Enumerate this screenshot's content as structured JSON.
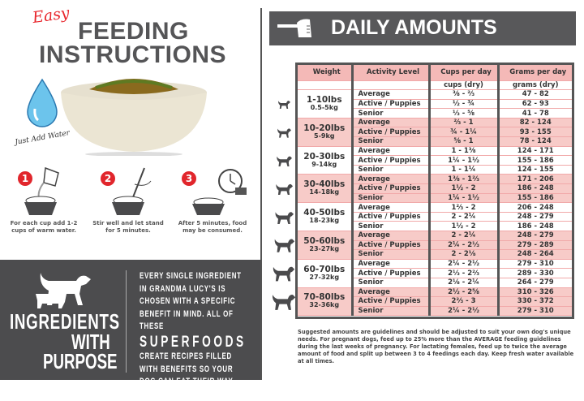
{
  "left": {
    "easy": "Easy",
    "title_line1": "FEEDING",
    "title_line2": "INSTRUCTIONS",
    "tagline": "Just Add Water",
    "steps": [
      {
        "number": "1",
        "caption": "For each cup add 1-2 cups of warm water."
      },
      {
        "number": "2",
        "caption": "Stir well and let stand for 5 minutes."
      },
      {
        "number": "3",
        "caption": "After 5 minutes, food may be consumed.",
        "timer_label": "5min"
      }
    ],
    "ingredients": {
      "line1": "INGREDIENTS",
      "line2": "WITH",
      "line3": "PURPOSE",
      "blurb_a": "EVERY SINGLE INGREDIENT IN GRANDMA LUCY'S IS CHOSEN WITH A SPECIFIC BENEFIT IN MIND. ALL OF THESE",
      "blurb_big": "SUPERFOODS",
      "blurb_b": "CREATE RECIPES FILLED WITH BENEFITS SO YOUR DOG CAN EAT THEIR WAY TO HEALTH."
    }
  },
  "right": {
    "title": "DAILY AMOUNTS",
    "columns": [
      "Weight",
      "Activity Level",
      "Cups per day",
      "Grams per day"
    ],
    "units": {
      "cups": "cups (dry)",
      "grams": "grams (dry)"
    },
    "groups": [
      {
        "lbs": "1-10lbs",
        "kg": "0.5-5kg",
        "rows": [
          [
            "Average",
            "⅜ - ⅔",
            "47 - 82"
          ],
          [
            "Active / Puppies",
            "½ - ¾",
            "62 - 93"
          ],
          [
            "Senior",
            "⅓ - ⅝",
            "41 - 78"
          ]
        ]
      },
      {
        "lbs": "10-20lbs",
        "kg": "5-9kg",
        "rows": [
          [
            "Average",
            "⅔ - 1",
            "82 - 124"
          ],
          [
            "Active / Puppies",
            "¾ - 1¼",
            "93 - 155"
          ],
          [
            "Senior",
            "⅝ - 1",
            "78 - 124"
          ]
        ]
      },
      {
        "lbs": "20-30lbs",
        "kg": "9-14kg",
        "rows": [
          [
            "Average",
            "1 - 1⅜",
            "124 - 171"
          ],
          [
            "Active / Puppies",
            "1¼ - 1½",
            "155 - 186"
          ],
          [
            "Senior",
            "1 - 1¼",
            "124 - 155"
          ]
        ]
      },
      {
        "lbs": "30-40lbs",
        "kg": "14-18kg",
        "rows": [
          [
            "Average",
            "1⅜ - 1⅔",
            "171 - 206"
          ],
          [
            "Active / Puppies",
            "1½ - 2",
            "186 - 248"
          ],
          [
            "Senior",
            "1¼ - 1½",
            "155 - 186"
          ]
        ]
      },
      {
        "lbs": "40-50lbs",
        "kg": "18-23kg",
        "rows": [
          [
            "Average",
            "1⅔ - 2",
            "206 - 248"
          ],
          [
            "Active / Puppies",
            "2 - 2¼",
            "248 - 279"
          ],
          [
            "Senior",
            "1½ - 2",
            "186 - 248"
          ]
        ]
      },
      {
        "lbs": "50-60lbs",
        "kg": "23-27kg",
        "rows": [
          [
            "Average",
            "2 - 2¼",
            "248 - 279"
          ],
          [
            "Active / Puppies",
            "2¼ - 2⅓",
            "279 - 289"
          ],
          [
            "Senior",
            "2 - 2⅛",
            "248 - 264"
          ]
        ]
      },
      {
        "lbs": "60-70lbs",
        "kg": "27-32kg",
        "rows": [
          [
            "Average",
            "2¼ - 2½",
            "279 - 310"
          ],
          [
            "Active / Puppies",
            "2⅓ - 2⅔",
            "289 - 330"
          ],
          [
            "Senior",
            "2⅛ - 2¼",
            "264 - 279"
          ]
        ]
      },
      {
        "lbs": "70-80lbs",
        "kg": "32-36kg",
        "rows": [
          [
            "Average",
            "2½ - 2⅝",
            "310 - 326"
          ],
          [
            "Active / Puppies",
            "2⅔ - 3",
            "330 - 372"
          ],
          [
            "Senior",
            "2¼ - 2½",
            "279 - 310"
          ]
        ]
      }
    ],
    "notes": "Suggested amounts are guidelines and should be adjusted to suit your own dog's unique needs. For pregnant dogs, feed up to 25% more than the AVERAGE feeding guidelines during the last weeks of pregnancy. For lactating females, feed up to twice the average amount of food and split up between 3 to 4 feedings each day. Keep fresh water available at all times."
  },
  "colors": {
    "accent_red": "#e1262c",
    "dark_gray": "#4c4c4e",
    "pink_row": "#f7cbc8",
    "header_pink": "#f4b9b7"
  }
}
